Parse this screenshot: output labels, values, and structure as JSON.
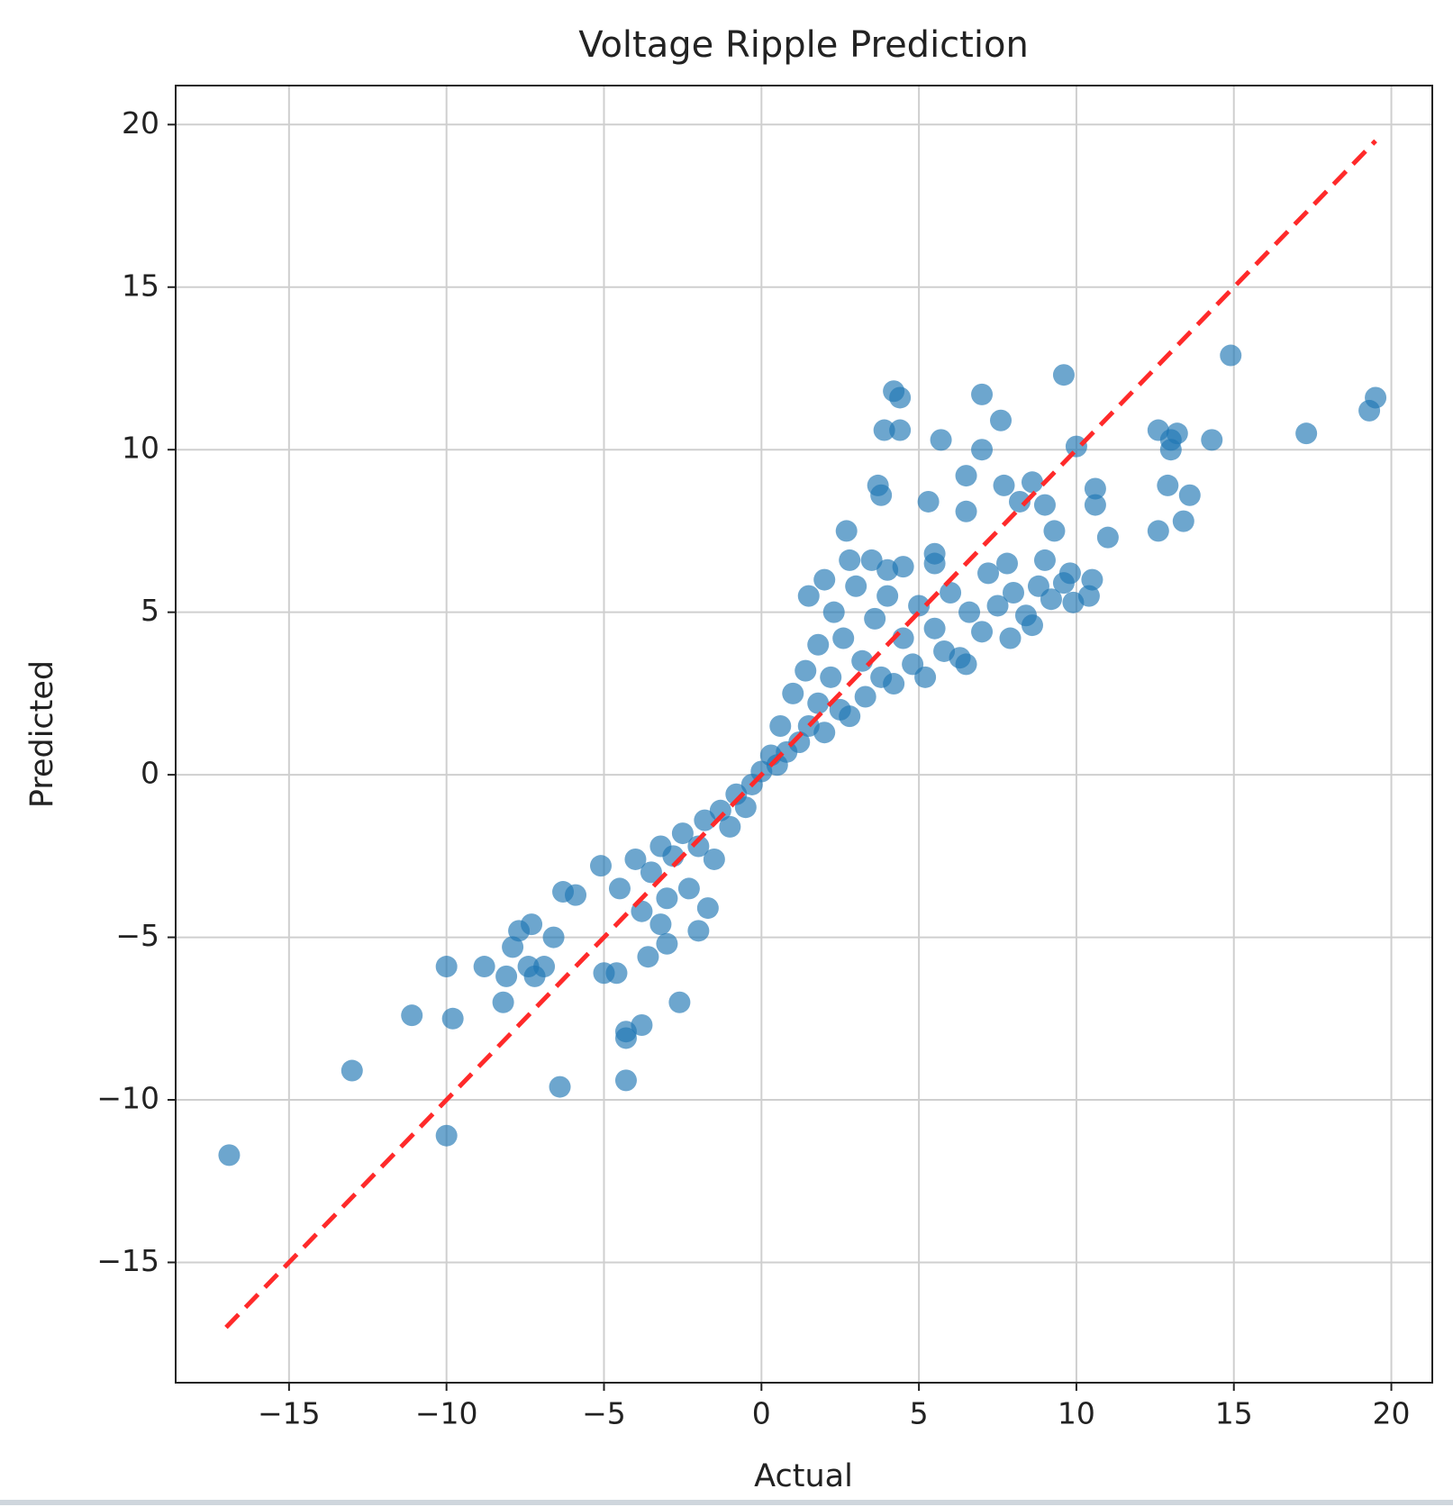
{
  "chart_data": {
    "type": "scatter",
    "title": "Voltage Ripple Prediction",
    "x_label": "Actual",
    "y_label": "Predicted",
    "xlim": [
      -18.6,
      21.3
    ],
    "ylim": [
      -18.7,
      21.2
    ],
    "xticks": [
      {
        "value": -15,
        "label": "−15"
      },
      {
        "value": -10,
        "label": "−10"
      },
      {
        "value": -5,
        "label": "−5"
      },
      0,
      5,
      10,
      15,
      20
    ],
    "yticks": [
      {
        "value": -15,
        "label": "−15"
      },
      {
        "value": -10,
        "label": "−10"
      },
      {
        "value": -5,
        "label": "−5"
      },
      0,
      5,
      10,
      15,
      20
    ],
    "grid": true,
    "color": "#1f77b4",
    "alpha": 0.65,
    "reference_line": {
      "x": [
        -17,
        19.5
      ],
      "y": [
        -17,
        19.5
      ],
      "color": "#ff2a2a",
      "style": "dashed"
    },
    "x": [
      -16.9,
      -13,
      -11.1,
      -10,
      -9.8,
      -10,
      -8.8,
      -8.2,
      -8.1,
      -7.9,
      -7.7,
      -7.4,
      -7.3,
      -7.2,
      -6.9,
      -6.6,
      -6.4,
      -6.3,
      -5.9,
      -5.1,
      -5,
      -4.6,
      -4.3,
      -4.3,
      -4.3,
      -3.8,
      -2.6,
      -3.6,
      -3,
      -2,
      -1.7,
      -3.2,
      3.7,
      3.8,
      3.9,
      4.2,
      4.4,
      4.4,
      2.7,
      5.3,
      5.7,
      6.5,
      6.5,
      7,
      7,
      7.6,
      7.7,
      8.2,
      8.6,
      9,
      9.3,
      9.6,
      10,
      10.6,
      10.6,
      11,
      12.6,
      12.6,
      12.9,
      13,
      13,
      13.2,
      13.4,
      13.6,
      14.3,
      14.9,
      17.3,
      19.3,
      19.5,
      10.5,
      10.4,
      9.8,
      8.6,
      7.9,
      6.5,
      2.8,
      3.5,
      4.5,
      5.5,
      -4.5,
      -4,
      -3.8,
      -3.5,
      -3.2,
      -3,
      -2.8,
      -2.5,
      -2.3,
      -2,
      -1.8,
      -1.5,
      -1.3,
      -1,
      -0.8,
      -0.5,
      -0.3,
      0,
      0.3,
      0.5,
      0.6,
      0.8,
      1,
      1.2,
      1.4,
      1.5,
      1.8,
      1.8,
      2,
      2.2,
      2.3,
      2.5,
      2.6,
      2.8,
      3,
      3.2,
      3.3,
      3.6,
      3.8,
      4,
      4.2,
      4.5,
      4.8,
      5,
      5.2,
      5.5,
      5.8,
      6,
      6.3,
      6.6,
      7,
      7.2,
      7.5,
      8,
      8.4,
      8.8,
      9.2,
      9.6,
      9.9,
      2,
      1.5,
      4,
      5.5,
      7.8,
      9
    ],
    "y": [
      -11.7,
      -9.1,
      -7.4,
      -5.9,
      -7.5,
      -11.1,
      -5.9,
      -7,
      -6.2,
      -5.3,
      -4.8,
      -5.9,
      -4.6,
      -6.2,
      -5.9,
      -5,
      -9.6,
      -3.6,
      -3.7,
      -2.8,
      -6.1,
      -6.1,
      -8.1,
      -9.4,
      -7.9,
      -7.7,
      -7,
      -5.6,
      -5.2,
      -4.8,
      -4.1,
      -4.6,
      8.9,
      8.6,
      10.6,
      11.8,
      11.6,
      10.6,
      7.5,
      8.4,
      10.3,
      9.2,
      8.1,
      11.7,
      10,
      10.9,
      8.9,
      8.4,
      9,
      8.3,
      7.5,
      12.3,
      10.1,
      8.8,
      8.3,
      7.3,
      10.6,
      7.5,
      8.9,
      10.3,
      10,
      10.5,
      7.8,
      8.6,
      10.3,
      12.9,
      10.5,
      11.2,
      11.6,
      6,
      5.5,
      6.2,
      4.6,
      4.2,
      3.4,
      6.6,
      6.6,
      6.4,
      6.8,
      -3.5,
      -2.6,
      -4.2,
      -3,
      -2.2,
      -3.8,
      -2.5,
      -1.8,
      -3.5,
      -2.2,
      -1.4,
      -2.6,
      -1.1,
      -1.6,
      -0.6,
      -1,
      -0.3,
      0.1,
      0.6,
      0.3,
      1.5,
      0.7,
      2.5,
      1,
      3.2,
      1.5,
      4,
      2.2,
      1.3,
      3,
      5,
      2,
      4.2,
      1.8,
      5.8,
      3.5,
      2.4,
      4.8,
      3,
      5.5,
      2.8,
      4.2,
      3.4,
      5.2,
      3,
      4.5,
      3.8,
      5.6,
      3.6,
      5,
      4.4,
      6.2,
      5.2,
      5.6,
      4.9,
      5.8,
      5.4,
      5.9,
      5.3,
      6,
      5.5,
      6.3,
      6.5,
      6.5,
      6.6
    ]
  }
}
